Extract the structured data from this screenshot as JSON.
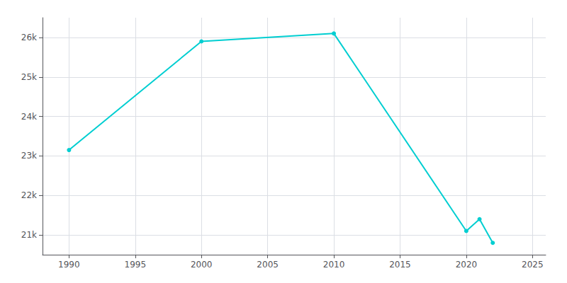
{
  "chart_data": {
    "type": "line",
    "x": [
      1990,
      2000,
      2010,
      2020,
      2021,
      2022
    ],
    "values": [
      23150,
      25900,
      26100,
      21100,
      21400,
      20800
    ],
    "color": "#00CED1",
    "marker": "circle",
    "xlim": [
      1988,
      2026
    ],
    "xticks": [
      1990,
      1995,
      2000,
      2005,
      2010,
      2015,
      2020,
      2025
    ],
    "ylim": [
      20500,
      26500
    ],
    "yticks": [
      {
        "value": 21000,
        "label": "21k"
      },
      {
        "value": 22000,
        "label": "22k"
      },
      {
        "value": 23000,
        "label": "23k"
      },
      {
        "value": 24000,
        "label": "24k"
      },
      {
        "value": 25000,
        "label": "25k"
      },
      {
        "value": 26000,
        "label": "26k"
      }
    ],
    "grid": true
  }
}
